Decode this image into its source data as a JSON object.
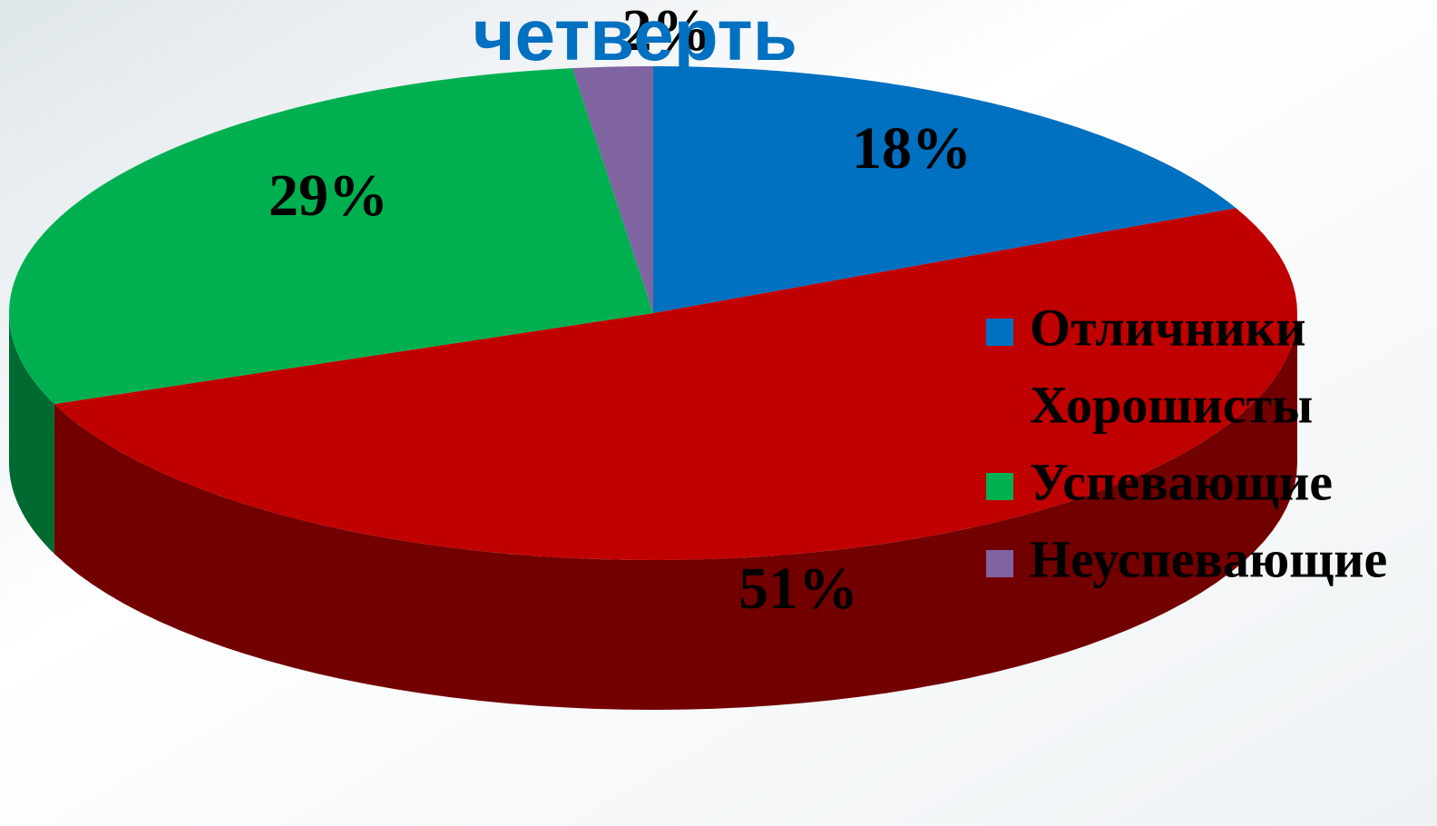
{
  "chart_data": {
    "type": "pie3d",
    "title": "четверть",
    "categories": [
      "Отличники",
      "Хорошисты",
      "Успевающие",
      "Неуспевающие"
    ],
    "values": [
      18,
      51,
      29,
      2
    ],
    "value_labels": [
      "18%",
      "51%",
      "29%",
      "2%"
    ],
    "colors": [
      "#0070c0",
      "#c00000",
      "#00b050",
      "#8064a2"
    ],
    "legend": "right"
  }
}
